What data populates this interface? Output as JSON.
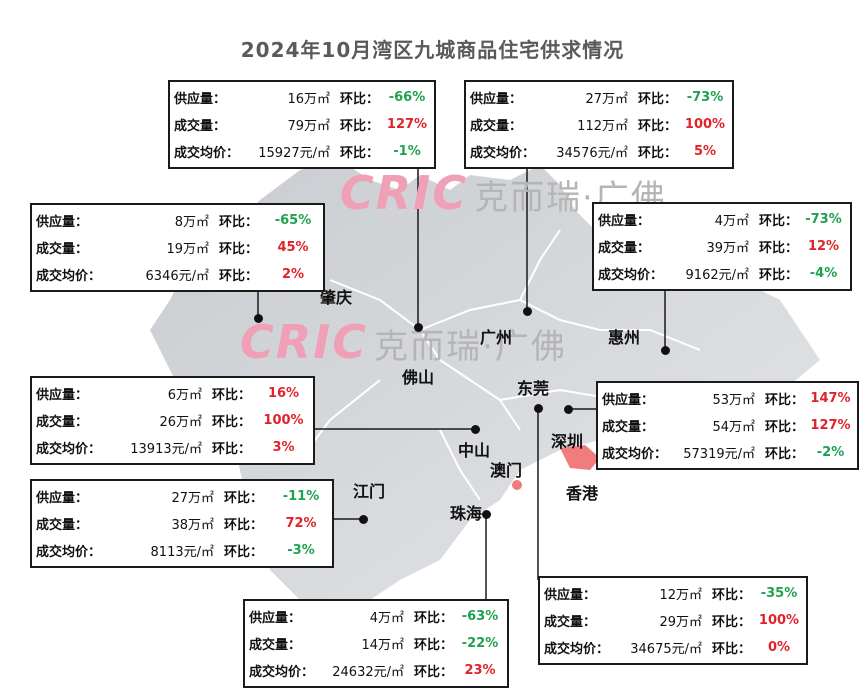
{
  "title": "2024年10月湾区九城商品住宅供求情况",
  "watermark": {
    "logo": "CRIC",
    "text": "克而瑞·广佛"
  },
  "labels": {
    "supply": "供应量",
    "deal": "成交量",
    "price": "成交均价",
    "hb": "环比"
  },
  "cities": {
    "guangzhou": {
      "name": "广州",
      "rows": [
        {
          "value": "16万㎡",
          "change": "-66%",
          "trend": "down"
        },
        {
          "value": "79万㎡",
          "change": "127%",
          "trend": "up"
        },
        {
          "value": "15927元/㎡",
          "change": "-1%",
          "trend": "down"
        }
      ]
    },
    "dongguan": {
      "name": "东莞",
      "rows": [
        {
          "value": "27万㎡",
          "change": "-73%",
          "trend": "down"
        },
        {
          "value": "112万㎡",
          "change": "100%",
          "trend": "up"
        },
        {
          "value": "34576元/㎡",
          "change": "5%",
          "trend": "up"
        }
      ]
    },
    "zhaoqing": {
      "name": "肇庆",
      "rows": [
        {
          "value": "8万㎡",
          "change": "-65%",
          "trend": "down"
        },
        {
          "value": "19万㎡",
          "change": "45%",
          "trend": "up"
        },
        {
          "value": "6346元/㎡",
          "change": "2%",
          "trend": "up"
        }
      ]
    },
    "huizhou": {
      "name": "惠州",
      "rows": [
        {
          "value": "4万㎡",
          "change": "-73%",
          "trend": "down"
        },
        {
          "value": "39万㎡",
          "change": "12%",
          "trend": "up"
        },
        {
          "value": "9162元/㎡",
          "change": "-4%",
          "trend": "down"
        }
      ]
    },
    "foshan": {
      "name": "佛山",
      "rows": [
        {
          "value": "6万㎡",
          "change": "16%",
          "trend": "up"
        },
        {
          "value": "26万㎡",
          "change": "100%",
          "trend": "up"
        },
        {
          "value": "13913元/㎡",
          "change": "3%",
          "trend": "up"
        }
      ]
    },
    "shenzhen": {
      "name": "深圳",
      "rows": [
        {
          "value": "53万㎡",
          "change": "147%",
          "trend": "up"
        },
        {
          "value": "54万㎡",
          "change": "127%",
          "trend": "up"
        },
        {
          "value": "57319元/㎡",
          "change": "-2%",
          "trend": "down"
        }
      ]
    },
    "jiangmen": {
      "name": "江门",
      "rows": [
        {
          "value": "27万㎡",
          "change": "-11%",
          "trend": "down"
        },
        {
          "value": "38万㎡",
          "change": "72%",
          "trend": "up"
        },
        {
          "value": "8113元/㎡",
          "change": "-3%",
          "trend": "down"
        }
      ]
    },
    "zhuhai": {
      "name": "珠海",
      "rows": [
        {
          "value": "4万㎡",
          "change": "-63%",
          "trend": "down"
        },
        {
          "value": "14万㎡",
          "change": "-22%",
          "trend": "down"
        },
        {
          "value": "24632元/㎡",
          "change": "23%",
          "trend": "up"
        }
      ]
    },
    "zhongshan": {
      "name": "中山",
      "rows": [
        {
          "value": "12万㎡",
          "change": "-35%",
          "trend": "down"
        },
        {
          "value": "29万㎡",
          "change": "100%",
          "trend": "up"
        },
        {
          "value": "34675元/㎡",
          "change": "0%",
          "trend": "up"
        }
      ]
    }
  },
  "other_places": {
    "macau": "澳门",
    "hongkong": "香港"
  },
  "colors": {
    "up": "#e0232a",
    "down": "#1fa150",
    "map": "#d5d8dc",
    "hk": "#f07c7c"
  }
}
